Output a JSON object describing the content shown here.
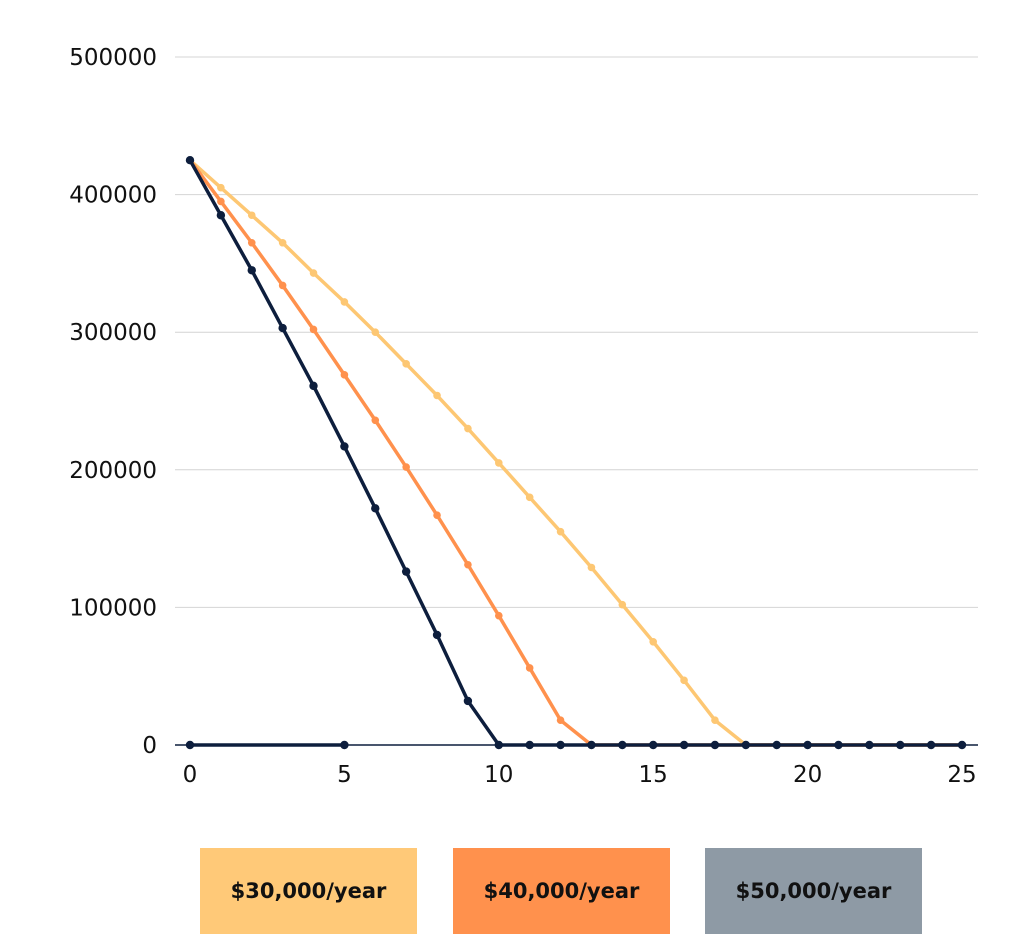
{
  "chart_data": {
    "type": "line",
    "title": "",
    "xlabel": "",
    "ylabel": "",
    "xlim": [
      0,
      25
    ],
    "ylim": [
      0,
      500000
    ],
    "x_ticks": [
      0,
      5,
      10,
      15,
      20,
      25
    ],
    "y_ticks": [
      0,
      100000,
      200000,
      300000,
      400000,
      500000
    ],
    "grid": "horizontal",
    "legend_position": "bottom",
    "series": [
      {
        "name": "$30,000/year",
        "color": "#FDC773",
        "x": [
          0,
          1,
          2,
          3,
          4,
          5,
          6,
          7,
          8,
          9,
          10,
          11,
          12,
          13,
          14,
          15,
          16,
          17,
          18,
          19,
          20,
          21,
          22,
          23,
          24,
          25
        ],
        "values": [
          425000,
          405000,
          385000,
          365000,
          343000,
          322000,
          300000,
          277000,
          254000,
          230000,
          205000,
          180000,
          155000,
          129000,
          102000,
          75000,
          47000,
          18000,
          0,
          0,
          0,
          0,
          0,
          0,
          0,
          0
        ]
      },
      {
        "name": "$40,000/year",
        "color": "#FF914D",
        "x": [
          0,
          1,
          2,
          3,
          4,
          5,
          6,
          7,
          8,
          9,
          10,
          11,
          12,
          13,
          14,
          15,
          16,
          17,
          18,
          19,
          20,
          21,
          22,
          23,
          24,
          25
        ],
        "values": [
          425000,
          395000,
          365000,
          334000,
          302000,
          269000,
          236000,
          202000,
          167000,
          131000,
          94000,
          56000,
          18000,
          0,
          0,
          0,
          0,
          0,
          0,
          0,
          0,
          0,
          0,
          0,
          0,
          0
        ]
      },
      {
        "name": "$50,000/year",
        "color": "#0D1E3D",
        "x": [
          0,
          1,
          2,
          3,
          4,
          5,
          6,
          7,
          8,
          9,
          10,
          11,
          12,
          13,
          14,
          15,
          16,
          17,
          18,
          19,
          20,
          21,
          22,
          23,
          24,
          25
        ],
        "values": [
          425000,
          385000,
          345000,
          303000,
          261000,
          217000,
          172000,
          126000,
          80000,
          32000,
          0,
          0,
          0,
          0,
          0,
          0,
          0,
          0,
          0,
          0,
          0,
          0,
          0,
          0,
          0,
          0
        ]
      },
      {
        "name": "",
        "color": "#0D1E3D",
        "x": [
          0,
          5
        ],
        "values": [
          0,
          0
        ]
      }
    ],
    "legend": [
      {
        "label": "$30,000/year",
        "color": "#FFC978"
      },
      {
        "label": "$40,000/year",
        "color": "#FF914D"
      },
      {
        "label": "$50,000/year",
        "color": "#8E9AA5"
      }
    ]
  }
}
